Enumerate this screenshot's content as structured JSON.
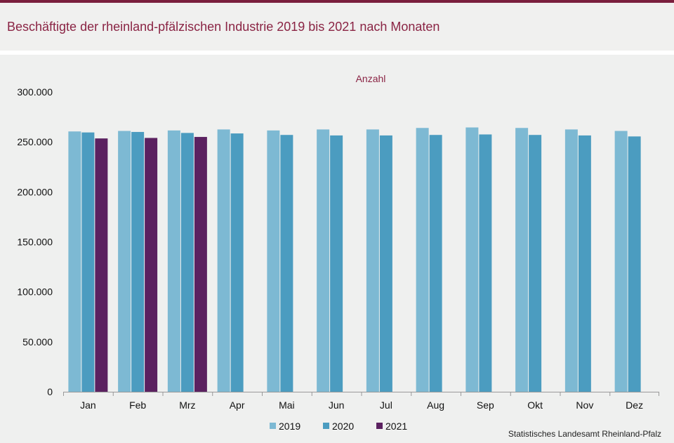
{
  "title": "Beschäftigte der rheinland-pfälzischen Industrie 2019 bis 2021 nach Monaten",
  "source": "Statistisches Landesamt  Rheinland-Pfalz",
  "chart_data": {
    "type": "bar",
    "unit_label": "Anzahl",
    "categories": [
      "Jan",
      "Feb",
      "Mrz",
      "Apr",
      "Mai",
      "Jun",
      "Jul",
      "Aug",
      "Sep",
      "Okt",
      "Nov",
      "Dez"
    ],
    "series": [
      {
        "name": "2019",
        "color": "#7db9d3",
        "values": [
          260500,
          261000,
          261500,
          262500,
          261500,
          262500,
          262500,
          264000,
          264500,
          264000,
          262500,
          261000
        ]
      },
      {
        "name": "2020",
        "color": "#4b9cc0",
        "values": [
          259500,
          260000,
          259000,
          258500,
          257000,
          256500,
          256500,
          257000,
          257500,
          257000,
          256500,
          255500
        ]
      },
      {
        "name": "2021",
        "color": "#5b2160",
        "values": [
          253500,
          254000,
          255000,
          null,
          null,
          null,
          null,
          null,
          null,
          null,
          null,
          null
        ]
      }
    ],
    "yticks": [
      "0",
      "50.000",
      "100.000",
      "150.000",
      "200.000",
      "250.000",
      "300.000"
    ],
    "ylim": [
      0,
      300000
    ],
    "legend_position": "bottom"
  }
}
